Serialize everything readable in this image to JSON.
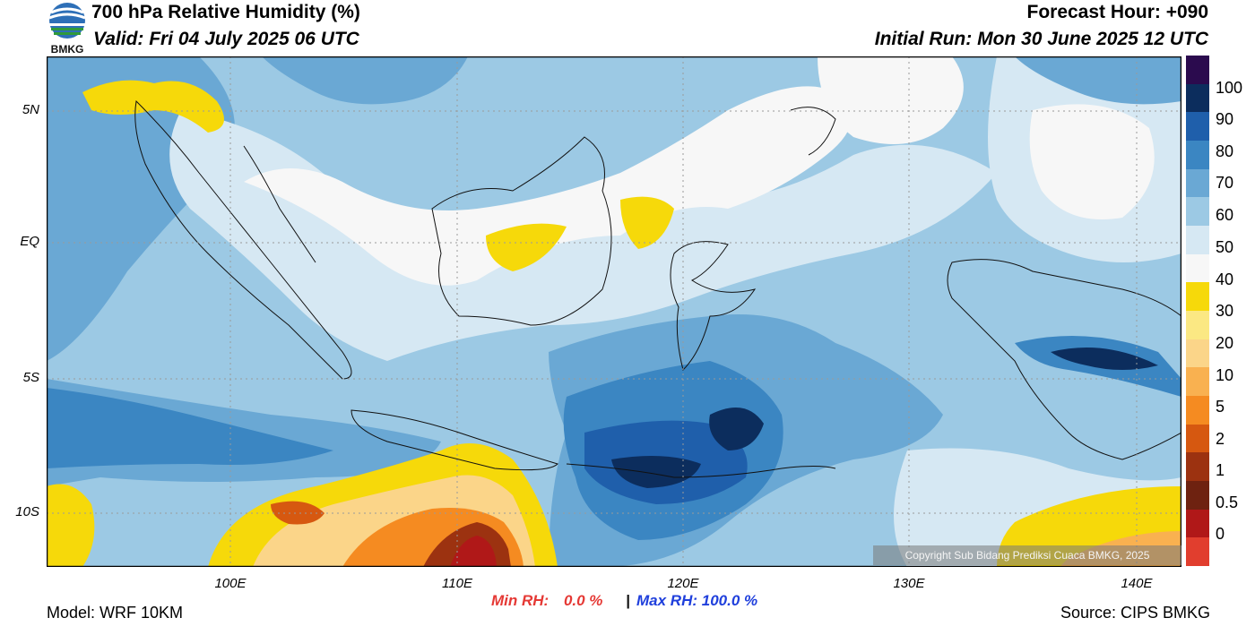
{
  "header": {
    "title": "700 hPa Relative Humidity (%)",
    "valid": "Valid: Fri 04 July 2025 06 UTC",
    "forecast_hour": "Forecast Hour: +090",
    "initial_run": "Initial Run: Mon 30 June 2025 12 UTC",
    "logo_text": "BMKG"
  },
  "map": {
    "lat_labels": [
      "5N",
      "EQ",
      "5S",
      "10S"
    ],
    "lon_labels": [
      "100E",
      "110E",
      "120E",
      "130E",
      "140E"
    ],
    "copyright": "Copyright Sub Bidang Prediksi Cuaca BMKG, 2025"
  },
  "colorbar": {
    "labels": [
      "100",
      "90",
      "80",
      "70",
      "60",
      "50",
      "40",
      "30",
      "20",
      "10",
      "5",
      "2",
      "1",
      "0.5",
      "0"
    ],
    "colors": [
      "#2b0b4e",
      "#0c2d5d",
      "#1f5fab",
      "#3b86c2",
      "#6aa8d4",
      "#9cc9e4",
      "#d6e8f3",
      "#f7f7f7",
      "#f6d90a",
      "#fbe883",
      "#fbd589",
      "#f9b150",
      "#f58b21",
      "#d65810",
      "#9c3210",
      "#6e2210",
      "#b01818",
      "#e13e2e"
    ]
  },
  "footer": {
    "model": "Model: WRF 10KM",
    "source": "Source: CIPS BMKG",
    "min_label": "Min RH:",
    "min_value": "0.0 %",
    "separator": "|",
    "max_label": "Max RH:",
    "max_value": "100.0 %"
  }
}
